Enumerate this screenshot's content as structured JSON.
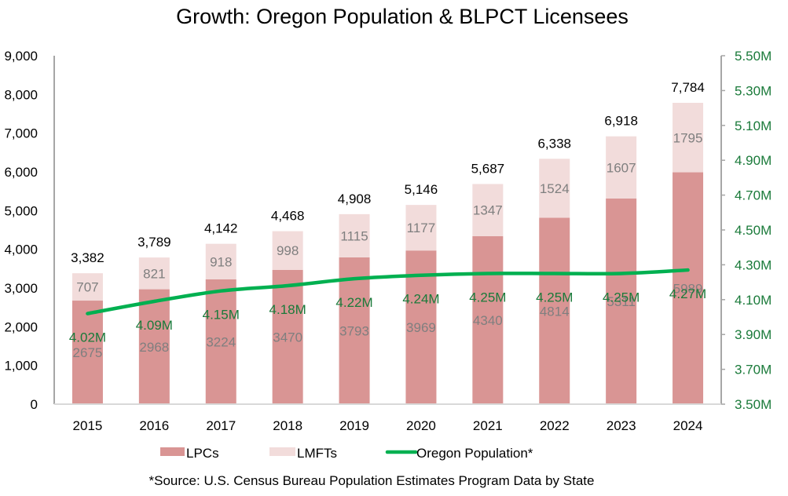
{
  "chart_data": {
    "type": "bar",
    "stacked": true,
    "title": "Growth: Oregon Population & BLPCT Licensees",
    "categories": [
      "2015",
      "2016",
      "2017",
      "2018",
      "2019",
      "2020",
      "2021",
      "2022",
      "2023",
      "2024"
    ],
    "series": [
      {
        "name": "LPCs",
        "axis": "left",
        "kind": "bar",
        "color": "#d99594",
        "values": [
          2675,
          2968,
          3224,
          3470,
          3793,
          3969,
          4340,
          4814,
          5311,
          5989
        ]
      },
      {
        "name": "LMFTs",
        "axis": "left",
        "kind": "bar",
        "color": "#f2dcdb",
        "values": [
          707,
          821,
          918,
          998,
          1115,
          1177,
          1347,
          1524,
          1607,
          1795
        ]
      },
      {
        "name": "Oregon Population*",
        "axis": "right",
        "kind": "line",
        "color": "#00b050",
        "values": [
          4.02,
          4.09,
          4.15,
          4.18,
          4.22,
          4.24,
          4.25,
          4.25,
          4.25,
          4.27
        ],
        "labels": [
          "4.02M",
          "4.09M",
          "4.15M",
          "4.18M",
          "4.22M",
          "4.24M",
          "4.25M",
          "4.25M",
          "4.25M",
          "4.27M"
        ]
      }
    ],
    "totals": [
      "3,382",
      "3,789",
      "4,142",
      "4,468",
      "4,908",
      "5,146",
      "5,687",
      "6,338",
      "6,918",
      "7,784"
    ],
    "left_axis": {
      "ylim": [
        0,
        9000
      ],
      "ticks": [
        0,
        1000,
        2000,
        3000,
        4000,
        5000,
        6000,
        7000,
        8000,
        9000
      ],
      "tick_labels": [
        "0",
        "1,000",
        "2,000",
        "3,000",
        "4,000",
        "5,000",
        "6,000",
        "7,000",
        "8,000",
        "9,000"
      ]
    },
    "right_axis": {
      "ylim": [
        3.5,
        5.5
      ],
      "ticks": [
        3.5,
        3.7,
        3.9,
        4.1,
        4.3,
        4.5,
        4.7,
        4.9,
        5.1,
        5.3,
        5.5
      ],
      "tick_labels": [
        "3.50M",
        "3.70M",
        "3.90M",
        "4.10M",
        "4.30M",
        "4.50M",
        "4.70M",
        "4.90M",
        "5.10M",
        "5.30M",
        "5.50M"
      ]
    },
    "xlabel": "",
    "ylabel": "",
    "grid": false,
    "legend": {
      "placement": "bottom",
      "entries": [
        "LPCs",
        "LMFTs",
        "Oregon Population*"
      ]
    },
    "footnote": "*Source: U.S. Census Bureau Population Estimates Program Data by State"
  },
  "colors": {
    "lpc": "#d99594",
    "lmft": "#f2dcdb",
    "population": "#00b050",
    "population_text": "#1a7a3a",
    "axis": "#a6a6a6",
    "segment_text": "#7f7f7f"
  }
}
